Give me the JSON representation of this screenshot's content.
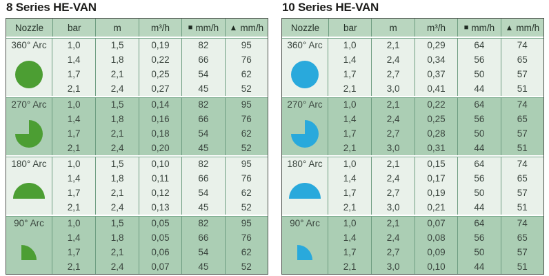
{
  "colors": {
    "header_bg": "#b9d6bf",
    "section_light_bg": "#e9f1ea",
    "section_medium_bg": "#abceb4",
    "outer_border": "#4b514b",
    "grid_line": "#6d9c80",
    "text": "#3a453e",
    "title_text": "#1d1d1b",
    "green_nozzle": "#4c9e33",
    "blue_nozzle": "#29a9dc"
  },
  "tables": [
    {
      "title": "8 Series HE-VAN",
      "accent_color": "#4c9e33",
      "headers": [
        {
          "label": "Nozzle"
        },
        {
          "label": "bar"
        },
        {
          "label": "m"
        },
        {
          "label": "m³/h"
        },
        {
          "icon": "■",
          "label": "mm/h"
        },
        {
          "icon": "▲",
          "label": "mm/h"
        }
      ],
      "sections": [
        {
          "arc": "360° Arc",
          "icon": "circle-360-arc-icon",
          "rows": [
            [
              "1,0",
              "1,5",
              "0,19",
              "82",
              "95"
            ],
            [
              "1,4",
              "1,8",
              "0,22",
              "66",
              "76"
            ],
            [
              "1,7",
              "2,1",
              "0,25",
              "54",
              "62"
            ],
            [
              "2,1",
              "2,4",
              "0,27",
              "45",
              "52"
            ]
          ]
        },
        {
          "arc": "270° Arc",
          "icon": "pie-270-arc-icon",
          "rows": [
            [
              "1,0",
              "1,5",
              "0,14",
              "82",
              "95"
            ],
            [
              "1,4",
              "1,8",
              "0,16",
              "66",
              "76"
            ],
            [
              "1,7",
              "2,1",
              "0,18",
              "54",
              "62"
            ],
            [
              "2,1",
              "2,4",
              "0,20",
              "45",
              "52"
            ]
          ]
        },
        {
          "arc": "180° Arc",
          "icon": "semicircle-180-arc-icon",
          "rows": [
            [
              "1,0",
              "1,5",
              "0,10",
              "82",
              "95"
            ],
            [
              "1,4",
              "1,8",
              "0,11",
              "66",
              "76"
            ],
            [
              "1,7",
              "2,1",
              "0,12",
              "54",
              "62"
            ],
            [
              "2,1",
              "2,4",
              "0,13",
              "45",
              "52"
            ]
          ]
        },
        {
          "arc": "90° Arc",
          "icon": "quarter-90-arc-icon",
          "rows": [
            [
              "1,0",
              "1,5",
              "0,05",
              "82",
              "95"
            ],
            [
              "1,4",
              "1,8",
              "0,05",
              "66",
              "76"
            ],
            [
              "1,7",
              "2,1",
              "0,06",
              "54",
              "62"
            ],
            [
              "2,1",
              "2,4",
              "0,07",
              "45",
              "52"
            ]
          ]
        }
      ]
    },
    {
      "title": "10 Series HE-VAN",
      "accent_color": "#29a9dc",
      "headers": [
        {
          "label": "Nozzle"
        },
        {
          "label": "bar"
        },
        {
          "label": "m"
        },
        {
          "label": "m³/h"
        },
        {
          "icon": "■",
          "label": "mm/h"
        },
        {
          "icon": "▲",
          "label": "mm/h"
        }
      ],
      "sections": [
        {
          "arc": "360° Arc",
          "icon": "circle-360-arc-icon",
          "rows": [
            [
              "1,0",
              "2,1",
              "0,29",
              "64",
              "74"
            ],
            [
              "1,4",
              "2,4",
              "0,34",
              "56",
              "65"
            ],
            [
              "1,7",
              "2,7",
              "0,37",
              "50",
              "57"
            ],
            [
              "2,1",
              "3,0",
              "0,41",
              "44",
              "51"
            ]
          ]
        },
        {
          "arc": "270° Arc",
          "icon": "pie-270-arc-icon",
          "rows": [
            [
              "1,0",
              "2,1",
              "0,22",
              "64",
              "74"
            ],
            [
              "1,4",
              "2,4",
              "0,25",
              "56",
              "65"
            ],
            [
              "1,7",
              "2,7",
              "0,28",
              "50",
              "57"
            ],
            [
              "2,1",
              "3,0",
              "0,31",
              "44",
              "51"
            ]
          ]
        },
        {
          "arc": "180° Arc",
          "icon": "semicircle-180-arc-icon",
          "rows": [
            [
              "1,0",
              "2,1",
              "0,15",
              "64",
              "74"
            ],
            [
              "1,4",
              "2,4",
              "0,17",
              "56",
              "65"
            ],
            [
              "1,7",
              "2,7",
              "0,19",
              "50",
              "57"
            ],
            [
              "2,1",
              "3,0",
              "0,21",
              "44",
              "51"
            ]
          ]
        },
        {
          "arc": "90° Arc",
          "icon": "quarter-90-arc-icon",
          "rows": [
            [
              "1,0",
              "2,1",
              "0,07",
              "64",
              "74"
            ],
            [
              "1,4",
              "2,4",
              "0,08",
              "56",
              "65"
            ],
            [
              "1,7",
              "2,7",
              "0,09",
              "50",
              "57"
            ],
            [
              "2,1",
              "3,0",
              "0,10",
              "44",
              "51"
            ]
          ]
        }
      ]
    }
  ]
}
